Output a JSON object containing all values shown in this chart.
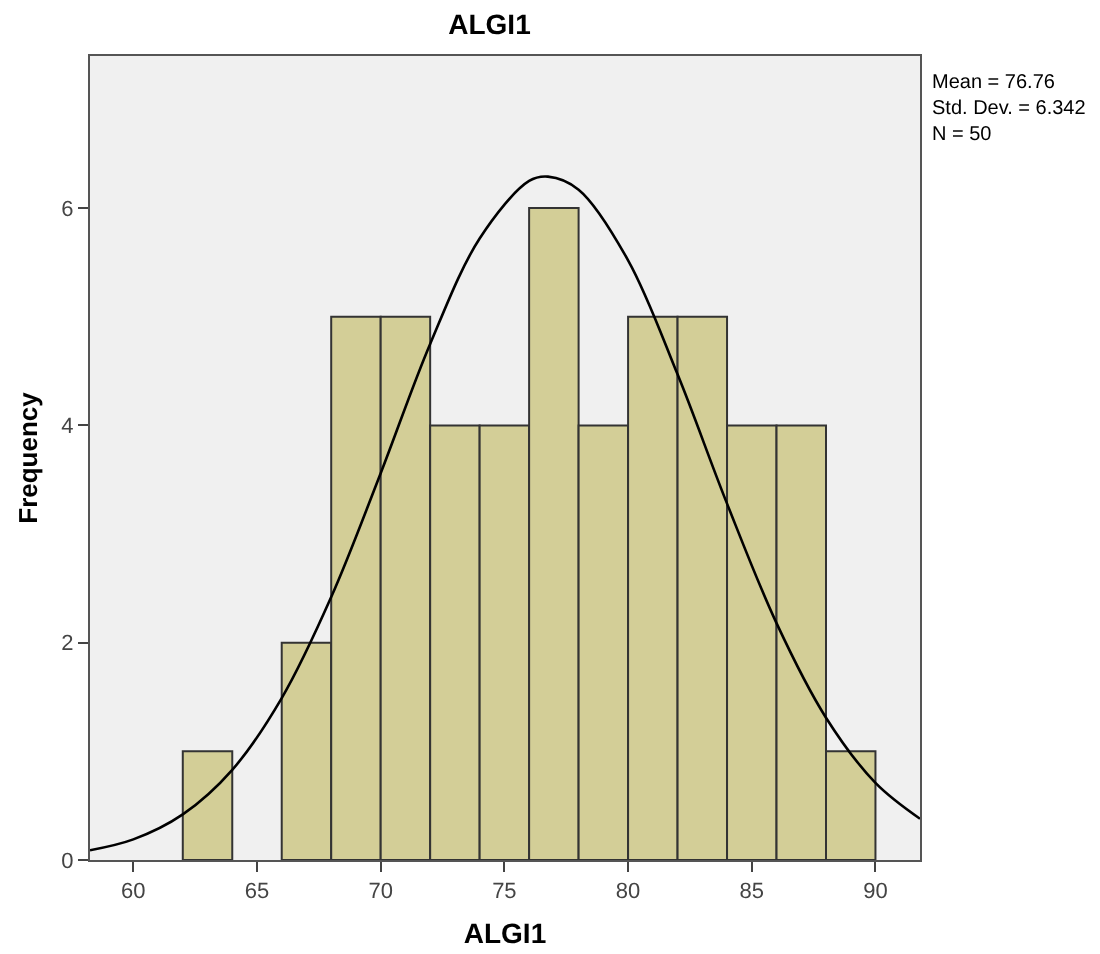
{
  "chart_data": {
    "type": "histogram",
    "title": "ALGI1",
    "xlabel": "ALGI1",
    "ylabel": "Frequency",
    "bins": [
      62,
      64,
      66,
      68,
      70,
      72,
      74,
      76,
      78,
      80,
      82,
      84,
      86,
      88,
      90
    ],
    "values": [
      1,
      0,
      2,
      5,
      5,
      4,
      4,
      6,
      4,
      5,
      5,
      4,
      4,
      1
    ],
    "color": "#d3ce97",
    "series": [
      {
        "type": "line",
        "color": "#000000",
        "x": [
          58.25,
          60,
          62,
          64,
          66,
          68,
          70,
          72,
          74,
          76,
          76.76,
          78,
          80,
          82,
          84,
          86,
          88,
          90,
          91.8
        ],
        "values": [
          0.09,
          0.19,
          0.42,
          0.83,
          1.49,
          2.42,
          3.56,
          4.75,
          5.72,
          6.25,
          6.29,
          6.17,
          5.52,
          4.47,
          3.28,
          2.18,
          1.31,
          0.71,
          0.38
        ]
      }
    ],
    "xlim": [
      58.25,
      91.8
    ],
    "xticks": [
      60,
      65,
      70,
      75,
      80,
      85,
      90
    ],
    "ylim": [
      0,
      7.4
    ],
    "yticks": [
      0,
      2,
      4,
      6
    ],
    "grid": false,
    "annotations": [
      "Mean = 76.76",
      "Std. Dev. = 6.342",
      "N = 50"
    ]
  }
}
